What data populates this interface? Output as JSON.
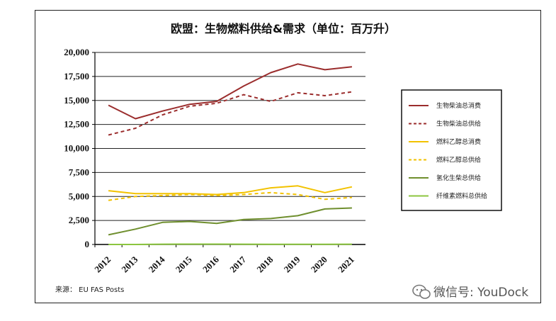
{
  "chart_data": {
    "type": "line",
    "title": "欧盟：生物燃料供给&需求（单位：百万升）",
    "xlabel": "",
    "ylabel": "",
    "ylim": [
      0,
      20000
    ],
    "yticks": [
      "0",
      "2,500",
      "5,000",
      "7,500",
      "10,000",
      "12,500",
      "15,000",
      "17,500",
      "20,000"
    ],
    "ytick_values": [
      0,
      2500,
      5000,
      7500,
      10000,
      12500,
      15000,
      17500,
      20000
    ],
    "categories": [
      "2012",
      "2013",
      "2014",
      "2015",
      "2016",
      "2017",
      "2018",
      "2019",
      "2020",
      "2021"
    ],
    "grid": "horizontal",
    "legend_position": "right",
    "series": [
      {
        "name": "生物柴油总消费",
        "color": "#9b2d2d",
        "dash": "solid",
        "values": [
          14500,
          13100,
          13900,
          14600,
          14900,
          16500,
          17900,
          18800,
          18200,
          18500
        ]
      },
      {
        "name": "生物柴油总供给",
        "color": "#9b2d2d",
        "dash": "dashed",
        "values": [
          11400,
          12100,
          13500,
          14400,
          14700,
          15600,
          14900,
          15800,
          15500,
          15900
        ]
      },
      {
        "name": "燃料乙醇总消费",
        "color": "#f2c200",
        "dash": "solid",
        "values": [
          5600,
          5300,
          5300,
          5300,
          5200,
          5400,
          5900,
          6100,
          5400,
          6000
        ]
      },
      {
        "name": "燃料乙醇总供给",
        "color": "#f2c200",
        "dash": "dashed",
        "values": [
          4600,
          5000,
          5100,
          5200,
          5100,
          5200,
          5400,
          5200,
          4700,
          4900
        ]
      },
      {
        "name": "氢化生柴总供给",
        "color": "#6f8f2e",
        "dash": "solid",
        "values": [
          1000,
          1600,
          2300,
          2400,
          2200,
          2600,
          2700,
          3000,
          3700,
          3800
        ]
      },
      {
        "name": "纤维素燃料总供给",
        "color": "#8cc63f",
        "dash": "solid",
        "values": [
          0,
          0,
          30,
          40,
          40,
          30,
          20,
          20,
          20,
          30
        ]
      }
    ],
    "source": "来源： EU FAS Posts"
  },
  "watermark": "微信号: YouDock"
}
